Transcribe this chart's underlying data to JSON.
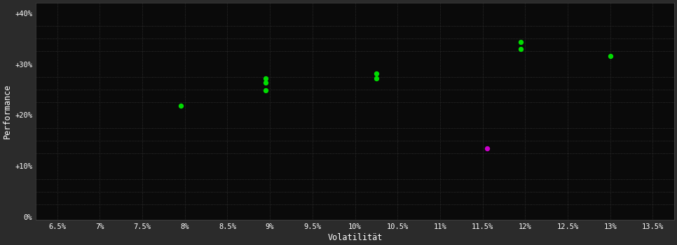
{
  "background_color": "#2b2b2b",
  "plot_bg_color": "#0a0a0a",
  "grid_color": "#3a3a3a",
  "text_color": "#ffffff",
  "xlabel": "Volatilität",
  "ylabel": "Performance",
  "xlim": [
    0.0625,
    0.1375
  ],
  "ylim": [
    -0.005,
    0.42
  ],
  "xticks": [
    0.065,
    0.07,
    0.075,
    0.08,
    0.085,
    0.09,
    0.095,
    0.1,
    0.105,
    0.11,
    0.115,
    0.12,
    0.125,
    0.13,
    0.135
  ],
  "yticks": [
    0.0,
    0.1,
    0.2,
    0.3,
    0.4
  ],
  "ytick_labels": [
    "0%",
    "+10%",
    "+20%",
    "+30%",
    "+40%"
  ],
  "xtick_labels": [
    "6.5%",
    "7%",
    "7.5%",
    "8%",
    "8.5%",
    "9%",
    "9.5%",
    "10%",
    "10.5%",
    "11%",
    "11.5%",
    "12%",
    "12.5%",
    "13%",
    "13.5%"
  ],
  "minor_yticks": [
    0.0,
    0.025,
    0.05,
    0.075,
    0.1,
    0.125,
    0.15,
    0.175,
    0.2,
    0.225,
    0.25,
    0.275,
    0.3,
    0.325,
    0.35,
    0.375,
    0.4
  ],
  "green_points": [
    [
      0.0795,
      0.218
    ],
    [
      0.0895,
      0.272
    ],
    [
      0.0895,
      0.264
    ],
    [
      0.0895,
      0.248
    ],
    [
      0.1025,
      0.281
    ],
    [
      0.1025,
      0.272
    ],
    [
      0.1195,
      0.343
    ],
    [
      0.1195,
      0.33
    ],
    [
      0.13,
      0.316
    ]
  ],
  "magenta_points": [
    [
      0.1155,
      0.135
    ]
  ],
  "green_color": "#00dd00",
  "magenta_color": "#cc00cc",
  "marker_size": 28
}
